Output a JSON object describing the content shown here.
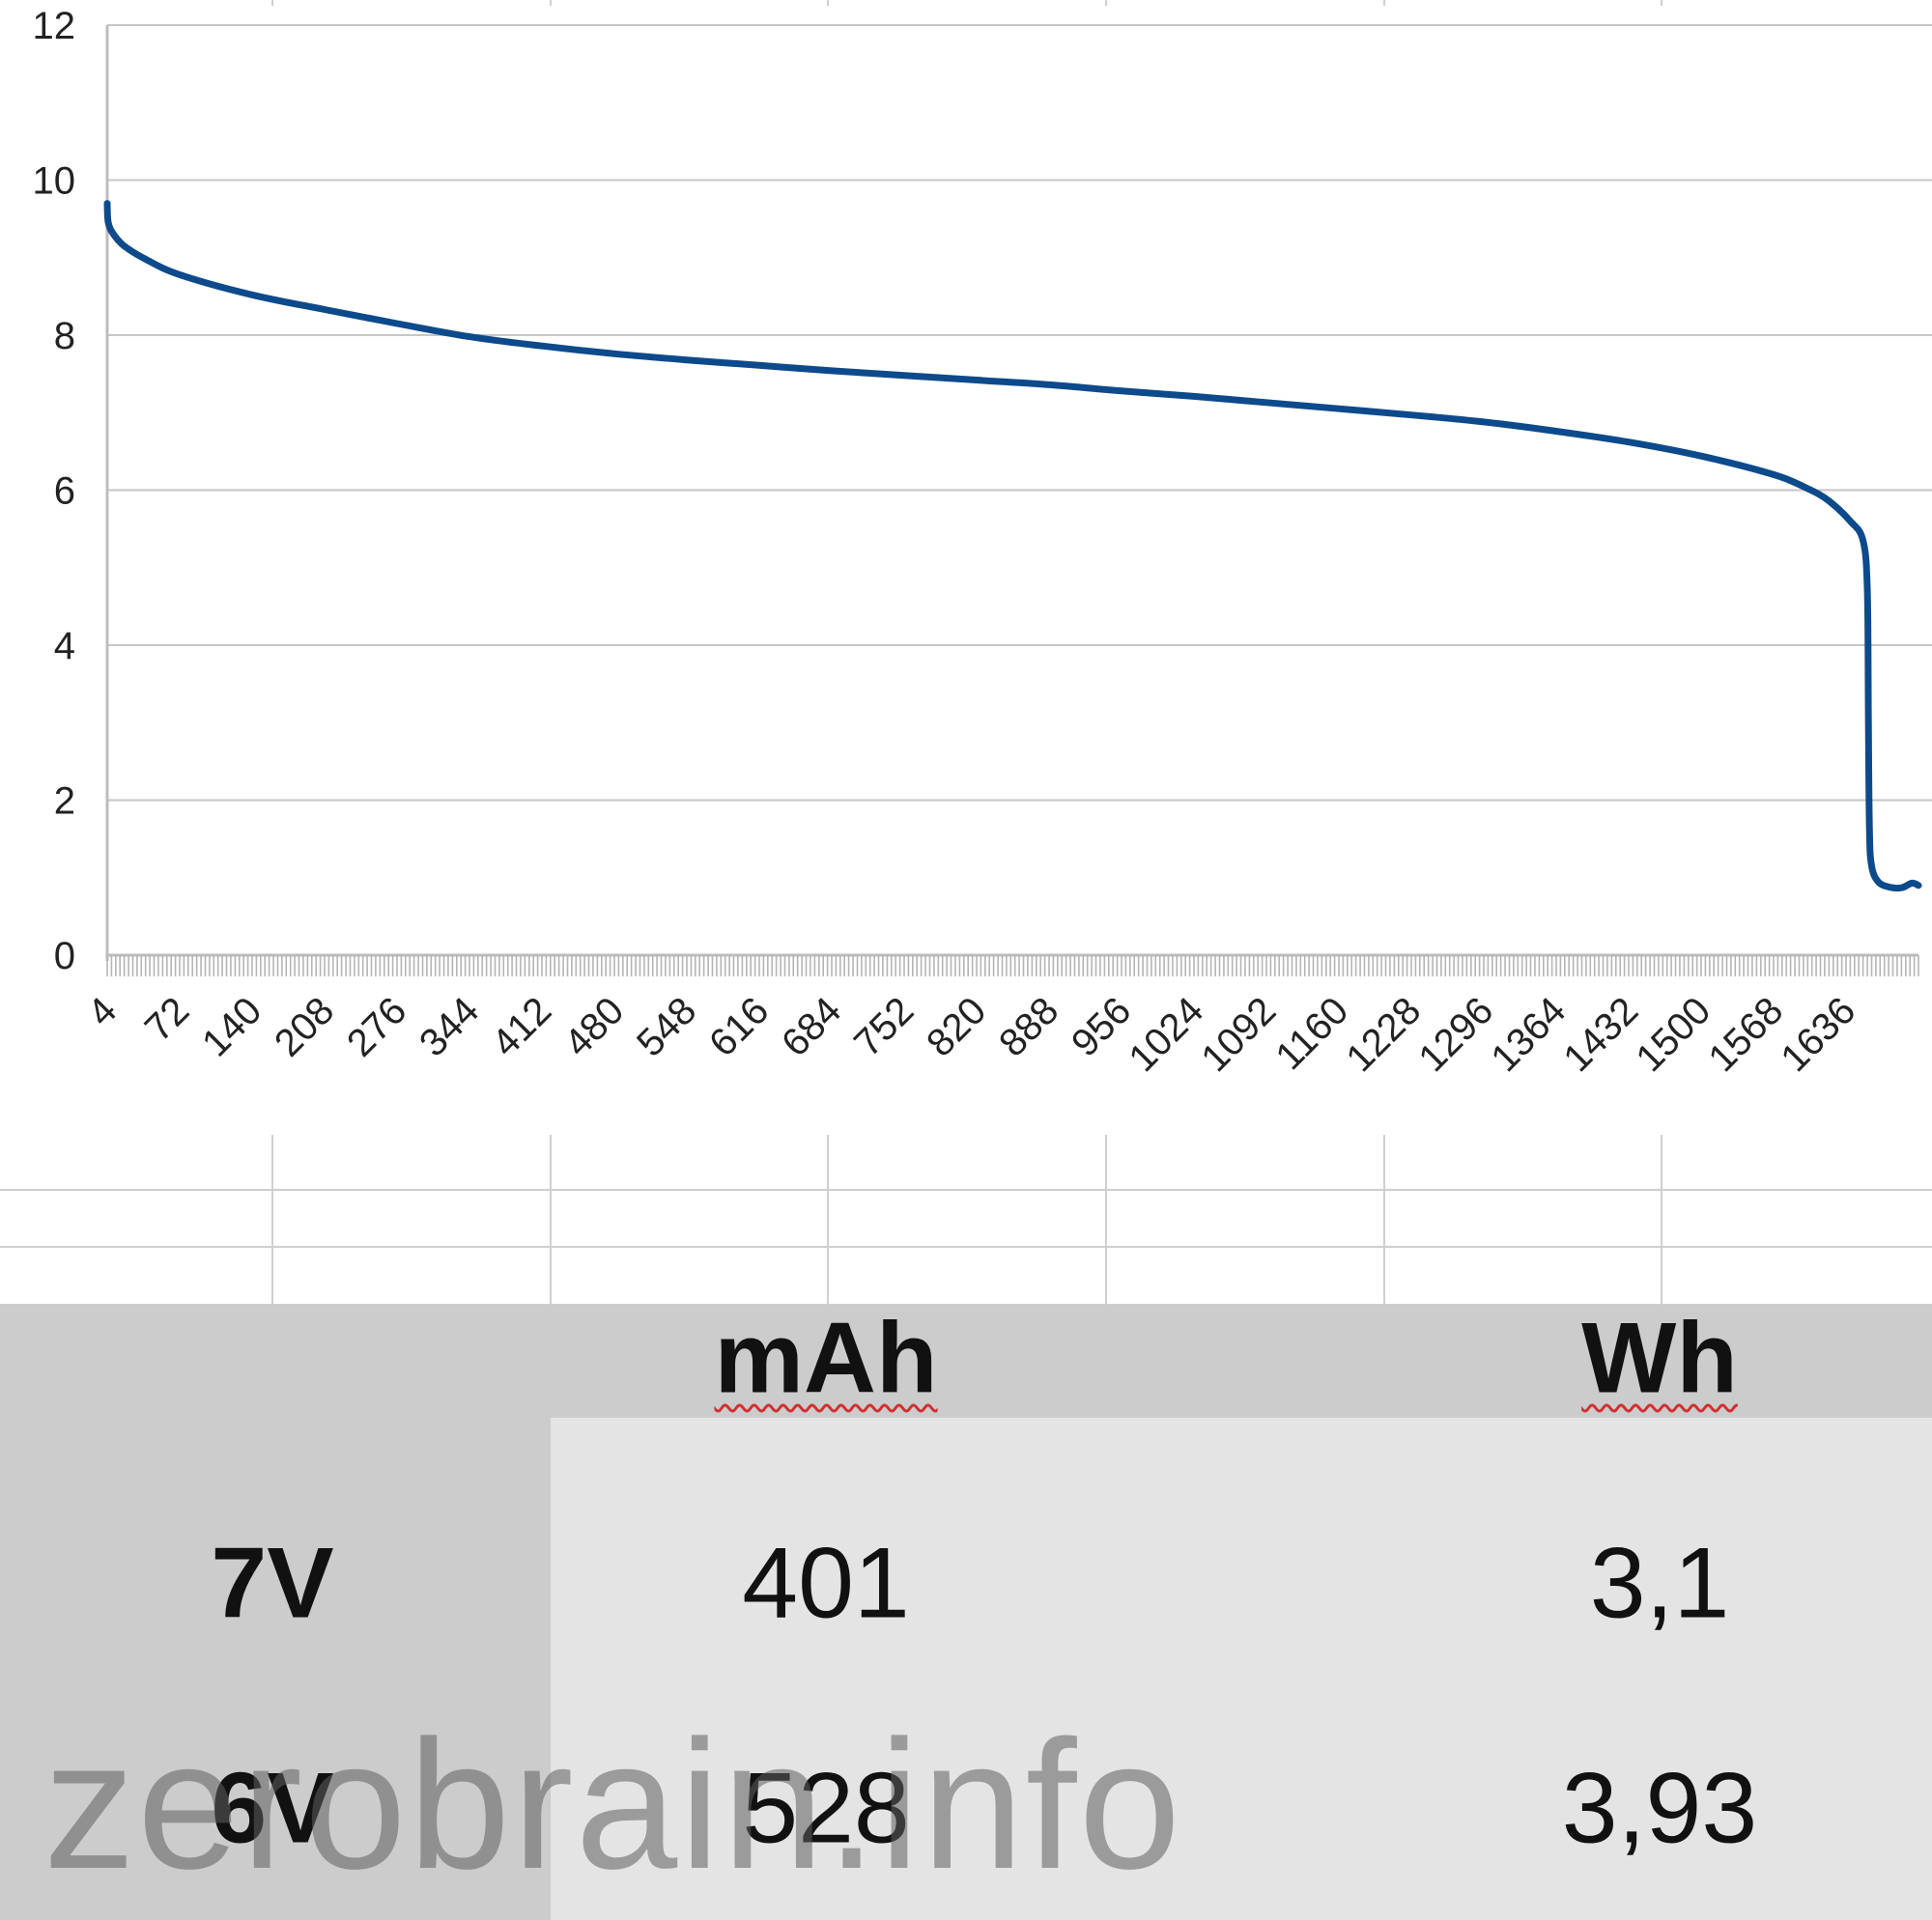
{
  "chart_data": {
    "type": "line",
    "title": "",
    "xlabel": "",
    "ylabel": "",
    "ylim": [
      0,
      12
    ],
    "yticks": [
      0,
      2,
      4,
      6,
      8,
      10,
      12
    ],
    "grid": true,
    "legend": "none",
    "x_category_labels": [
      "4",
      "72",
      "140",
      "208",
      "276",
      "344",
      "412",
      "480",
      "548",
      "616",
      "684",
      "752",
      "820",
      "888",
      "956",
      "1024",
      "1092",
      "1160",
      "1228",
      "1296",
      "1364",
      "1432",
      "1500",
      "1568",
      "1636"
    ],
    "x_range": [
      4,
      1704
    ],
    "series": [
      {
        "color": "#0d4a8c",
        "points": [
          [
            4,
            9.7
          ],
          [
            5,
            9.45
          ],
          [
            10,
            9.3
          ],
          [
            20,
            9.15
          ],
          [
            40,
            8.98
          ],
          [
            72,
            8.78
          ],
          [
            140,
            8.52
          ],
          [
            208,
            8.33
          ],
          [
            276,
            8.15
          ],
          [
            344,
            7.98
          ],
          [
            412,
            7.86
          ],
          [
            480,
            7.76
          ],
          [
            548,
            7.68
          ],
          [
            616,
            7.61
          ],
          [
            684,
            7.54
          ],
          [
            752,
            7.48
          ],
          [
            820,
            7.42
          ],
          [
            888,
            7.36
          ],
          [
            956,
            7.28
          ],
          [
            1024,
            7.21
          ],
          [
            1092,
            7.13
          ],
          [
            1160,
            7.05
          ],
          [
            1228,
            6.97
          ],
          [
            1296,
            6.88
          ],
          [
            1364,
            6.76
          ],
          [
            1432,
            6.62
          ],
          [
            1500,
            6.44
          ],
          [
            1568,
            6.2
          ],
          [
            1600,
            6.02
          ],
          [
            1620,
            5.86
          ],
          [
            1640,
            5.6
          ],
          [
            1652,
            5.35
          ],
          [
            1656,
            4.7
          ],
          [
            1657,
            3.0
          ],
          [
            1658,
            1.6
          ],
          [
            1660,
            1.15
          ],
          [
            1666,
            0.95
          ],
          [
            1676,
            0.88
          ],
          [
            1688,
            0.87
          ],
          [
            1698,
            0.93
          ],
          [
            1704,
            0.9
          ]
        ]
      }
    ]
  },
  "table": {
    "headers": [
      "mAh",
      "Wh"
    ],
    "rows": [
      {
        "label": "7V",
        "mah": "401",
        "wh": "3,1"
      },
      {
        "label": "6V",
        "mah": "528",
        "wh": "3,93"
      }
    ]
  },
  "watermark": "zerobrain.info"
}
